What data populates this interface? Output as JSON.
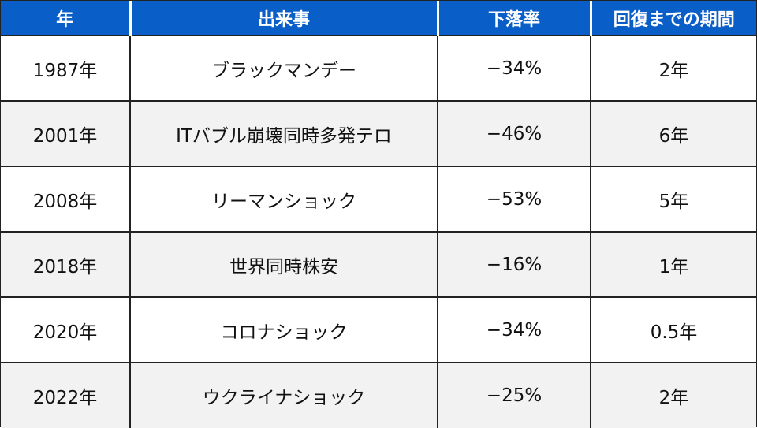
{
  "colors": {
    "header_bg": "#0a5ec8",
    "row_odd_bg": "#ffffff",
    "row_even_bg": "#f2f2f2",
    "grid_line": "#222222"
  },
  "table": {
    "headers": [
      "年",
      "出来事",
      "下落率",
      "回復までの期間"
    ],
    "rows": [
      [
        "1987年",
        "ブラックマンデー",
        "−34%",
        "2年"
      ],
      [
        "2001年",
        "ITバブル崩壊同時多発テロ",
        "−46%",
        "6年"
      ],
      [
        "2008年",
        "リーマンショック",
        "−53%",
        "5年"
      ],
      [
        "2018年",
        "世界同時株安",
        "−16%",
        "1年"
      ],
      [
        "2020年",
        "コロナショック",
        "−34%",
        "0.5年"
      ],
      [
        "2022年",
        "ウクライナショック",
        "−25%",
        "2年"
      ]
    ]
  }
}
